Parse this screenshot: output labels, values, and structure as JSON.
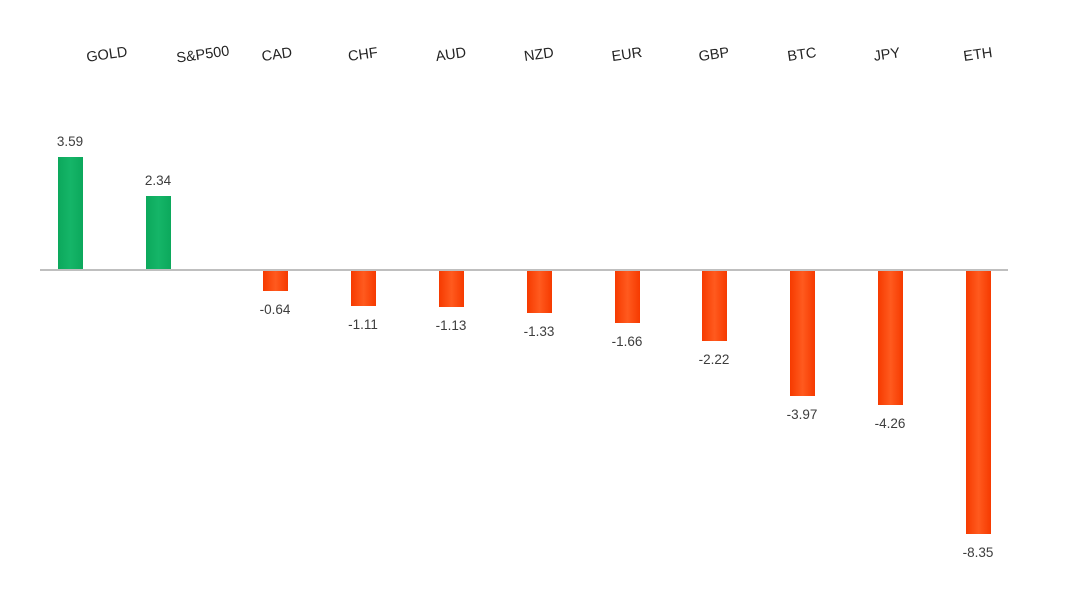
{
  "chart_data": {
    "type": "bar",
    "categories": [
      "GOLD",
      "S&P500",
      "CAD",
      "CHF",
      "AUD",
      "NZD",
      "EUR",
      "GBP",
      "BTC",
      "JPY",
      "ETH"
    ],
    "values": [
      3.59,
      2.34,
      -0.64,
      -1.11,
      -1.13,
      -1.33,
      -1.66,
      -2.22,
      -3.97,
      -4.26,
      -8.35
    ],
    "data_labels": [
      "3.59",
      "2.34",
      "-0.64",
      "-1.11",
      "-1.13",
      "-1.33",
      "-1.66",
      "-2.22",
      "-3.97",
      "-4.26",
      "-8.35"
    ],
    "title": "",
    "xlabel": "",
    "ylabel": "",
    "ylim": [
      -9,
      4
    ],
    "grid": false,
    "legend_position": "none",
    "category_label_position": "top",
    "data_label_position": "outside-end",
    "colors": {
      "positive_bar": "#0ca85c",
      "positive_bar_light": "#15b568",
      "negative_bar": "#f63a00",
      "negative_bar_light": "#ff5a1e",
      "axis_line": "#bfbfbf",
      "value_text": "#3d3d3d",
      "category_text": "#232323",
      "background": "#ffffff"
    }
  }
}
